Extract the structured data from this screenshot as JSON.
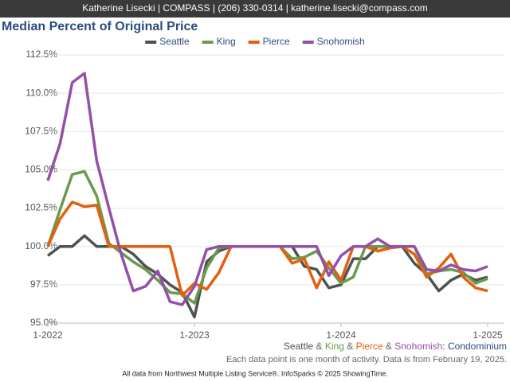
{
  "header": "Katherine Lisecki | COMPASS | (206) 330-0314 | katherine.lisecki@compass.com",
  "chart_data": {
    "type": "line",
    "title": "Median Percent of Original Price",
    "categories": [
      "1-2022",
      null,
      null,
      null,
      null,
      null,
      null,
      null,
      null,
      null,
      null,
      null,
      "1-2023",
      null,
      null,
      null,
      null,
      null,
      null,
      null,
      null,
      null,
      null,
      null,
      "1-2024",
      null,
      null,
      null,
      null,
      null,
      null,
      null,
      null,
      null,
      null,
      null,
      "1-2025"
    ],
    "series": [
      {
        "name": "Seattle",
        "color": "#4b5353",
        "values": [
          99.4,
          100,
          100,
          100.7,
          100,
          100,
          100,
          99.5,
          98.7,
          98.2,
          97.5,
          97.0,
          95.4,
          99.0,
          99.7,
          100,
          100,
          100,
          100,
          100,
          100,
          98.7,
          98.5,
          97.3,
          97.5,
          99.2,
          99.2,
          100,
          100,
          100,
          98.9,
          98.2,
          97.1,
          97.8,
          98.2,
          97.8,
          98.0
        ]
      },
      {
        "name": "King",
        "color": "#6b9a4a",
        "values": [
          100,
          102.4,
          104.7,
          104.9,
          103.3,
          100.2,
          99.6,
          99.0,
          98.5,
          97.8,
          97.0,
          96.9,
          96.3,
          98.6,
          99.9,
          100,
          100,
          100,
          100,
          100,
          99.2,
          99.3,
          99.7,
          98.6,
          97.6,
          98.0,
          100,
          100,
          100,
          100,
          100,
          98.2,
          98.4,
          98.5,
          98.3,
          97.6,
          97.9
        ]
      },
      {
        "name": "Pierce",
        "color": "#e2600f",
        "values": [
          100,
          101.8,
          102.9,
          102.6,
          102.7,
          100,
          100,
          100,
          100,
          100,
          100,
          96.8,
          97.6,
          97.2,
          98.3,
          100,
          100,
          100,
          100,
          100,
          98.9,
          99.2,
          97.3,
          99.0,
          97.8,
          100,
          100,
          99.7,
          99.9,
          100,
          99.5,
          98.0,
          98.6,
          99.5,
          98.0,
          97.3,
          97.1
        ]
      },
      {
        "name": "Snohomish",
        "color": "#9350a8",
        "values": [
          104.3,
          106.7,
          110.7,
          111.3,
          105.6,
          102.5,
          99.5,
          97.1,
          97.4,
          98.4,
          96.4,
          96.2,
          97.4,
          99.8,
          100,
          100,
          100,
          100,
          100,
          100,
          100,
          100,
          100,
          98.1,
          99.4,
          100,
          100,
          100.5,
          100,
          100,
          100,
          98.5,
          98.4,
          98.8,
          98.5,
          98.4,
          98.7
        ]
      }
    ],
    "ylim": [
      95,
      112.5
    ],
    "yticks": [
      {
        "value": 95,
        "label": "95.0%"
      },
      {
        "value": 97.5,
        "label": "97.5%"
      },
      {
        "value": 100,
        "label": "100.0%"
      },
      {
        "value": 102.5,
        "label": "102.5%"
      },
      {
        "value": 105,
        "label": "105.0%"
      },
      {
        "value": 107.5,
        "label": "107.5%"
      },
      {
        "value": 110,
        "label": "110.0%"
      },
      {
        "value": 112.5,
        "label": "112.5%"
      }
    ],
    "grid": true,
    "legend": "top",
    "caption": {
      "separator": " & ",
      "suffix": ": Condominium"
    },
    "note": "Each data point is one month of activity. Data is from February 19, 2025."
  },
  "footer": "All data from Northwest Multiple Listing Service®. InfoSparks © 2025 ShowingTime."
}
